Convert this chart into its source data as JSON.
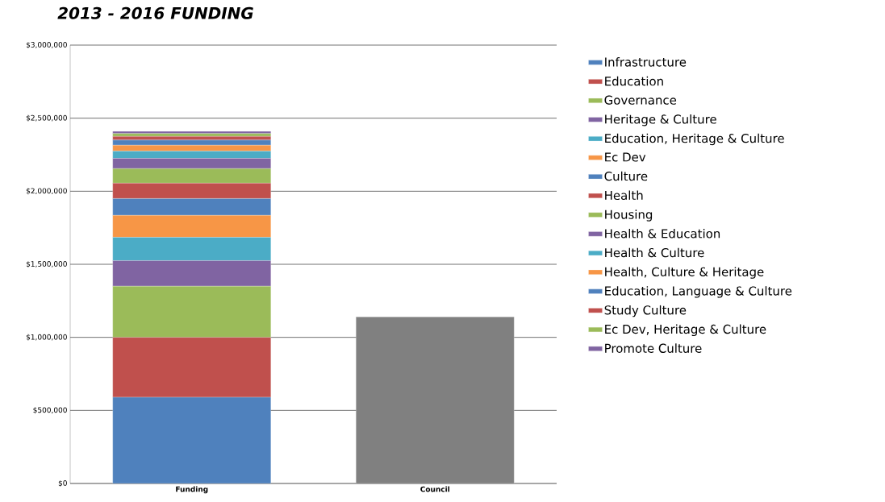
{
  "chart_data": {
    "type": "bar",
    "title": "2013 - 2016 FUNDING",
    "categories": [
      "Funding",
      "Council"
    ],
    "stacked": true,
    "legend": "right",
    "grid": "y",
    "ylim": [
      0,
      3000000
    ],
    "yticks": [
      {
        "value": 0,
        "label": "$0"
      },
      {
        "value": 500000,
        "label": "$500,000"
      },
      {
        "value": 1000000,
        "label": "$1,000,000"
      },
      {
        "value": 1500000,
        "label": "$1,500,000"
      },
      {
        "value": 2000000,
        "label": "$2,000,000"
      },
      {
        "value": 2500000,
        "label": "$2,500,000"
      },
      {
        "value": 3000000,
        "label": "$3,000,000"
      }
    ],
    "series": [
      {
        "name": "Infrastructure",
        "color": "#4f81bd",
        "values": [
          590000,
          null
        ]
      },
      {
        "name": "Education",
        "color": "#c0504d",
        "values": [
          410000,
          null
        ]
      },
      {
        "name": "Governance",
        "color": "#9bbb59",
        "values": [
          350000,
          null
        ]
      },
      {
        "name": "Heritage & Culture",
        "color": "#8064a2",
        "values": [
          175000,
          null
        ]
      },
      {
        "name": "Education, Heritage & Culture",
        "color": "#4bacc6",
        "values": [
          160000,
          null
        ]
      },
      {
        "name": "Ec Dev",
        "color": "#f79646",
        "values": [
          150000,
          null
        ]
      },
      {
        "name": "Culture",
        "color": "#4f81bd",
        "values": [
          115000,
          null
        ]
      },
      {
        "name": "Health",
        "color": "#c0504d",
        "values": [
          105000,
          null
        ]
      },
      {
        "name": "Housing",
        "color": "#9bbb59",
        "values": [
          100000,
          null
        ]
      },
      {
        "name": "Health & Education",
        "color": "#8064a2",
        "values": [
          70000,
          null
        ]
      },
      {
        "name": "Health & Culture",
        "color": "#4bacc6",
        "values": [
          50000,
          null
        ]
      },
      {
        "name": "Health, Culture & Heritage",
        "color": "#f79646",
        "values": [
          40000,
          null
        ]
      },
      {
        "name": "Education, Language & Culture",
        "color": "#4f81bd",
        "values": [
          35000,
          null
        ]
      },
      {
        "name": "Study Culture",
        "color": "#c0504d",
        "values": [
          25000,
          null
        ]
      },
      {
        "name": "Ec Dev, Heritage & Culture",
        "color": "#9bbb59",
        "values": [
          20000,
          null
        ]
      },
      {
        "name": "Promote Culture",
        "color": "#8064a2",
        "values": [
          15000,
          null
        ]
      },
      {
        "color": "#808080",
        "values": [
          null,
          1140000
        ]
      }
    ]
  }
}
